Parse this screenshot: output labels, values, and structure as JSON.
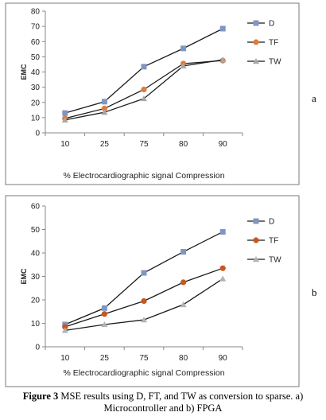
{
  "chart_data": [
    {
      "type": "line",
      "panel_label": "a",
      "categories": [
        "10",
        "25",
        "75",
        "80",
        "90"
      ],
      "series": [
        {
          "name": "D",
          "values": [
            13,
            20.5,
            43.5,
            55.5,
            68.5
          ],
          "color": "#8096c2",
          "marker": "square"
        },
        {
          "name": "TF",
          "values": [
            9.5,
            16,
            28.5,
            45.5,
            47.5
          ],
          "color": "#e07b39",
          "marker": "circle"
        },
        {
          "name": "TW",
          "values": [
            8.5,
            13.5,
            22.5,
            44,
            48
          ],
          "color": "#a7a7a7",
          "marker": "triangle"
        }
      ],
      "xlabel": "% Electrocardiographic signal Compression",
      "ylabel": "EMC",
      "ylim": [
        0,
        80
      ],
      "yticks": [
        0,
        10,
        20,
        30,
        40,
        50,
        60,
        70,
        80
      ],
      "grid": false,
      "legend": "right"
    },
    {
      "type": "line",
      "panel_label": "b",
      "categories": [
        "10",
        "25",
        "75",
        "80",
        "90"
      ],
      "series": [
        {
          "name": "D",
          "values": [
            9.5,
            16.5,
            31.5,
            40.5,
            49
          ],
          "color": "#8096c2",
          "marker": "square"
        },
        {
          "name": "TF",
          "values": [
            8.5,
            14,
            19.5,
            27.5,
            33.5
          ],
          "color": "#c9561e",
          "marker": "circle"
        },
        {
          "name": "TW",
          "values": [
            7,
            9.5,
            11.5,
            18,
            29
          ],
          "color": "#b3b3b3",
          "marker": "triangle"
        }
      ],
      "xlabel": "% Electrocardiographic signal Compression",
      "ylabel": "EMC",
      "ylim": [
        0,
        60
      ],
      "yticks": [
        0,
        10,
        20,
        30,
        40,
        50,
        60
      ],
      "grid": false,
      "legend": "right"
    }
  ],
  "caption": {
    "prefix": "Figure 3",
    "text": " MSE results using D, FT, and TW as conversion to sparse. a) Microcontroller and b) FPGA"
  }
}
